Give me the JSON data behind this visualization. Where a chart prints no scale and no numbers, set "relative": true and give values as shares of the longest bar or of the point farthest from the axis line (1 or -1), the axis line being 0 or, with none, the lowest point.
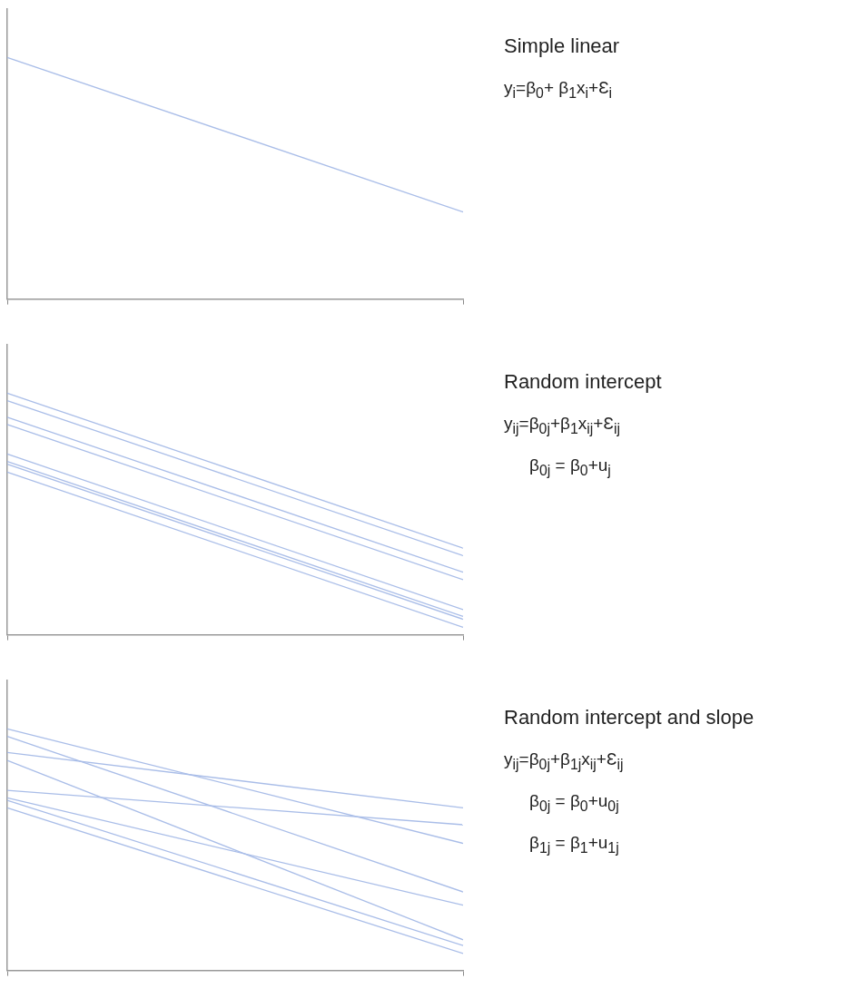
{
  "chart_data": [
    {
      "type": "line",
      "title": "Simple linear",
      "annotations": [
        "y$_{i}$=β$_{0}$+ β$_{1}$x$_{i}$+Ɛ$_{i}$"
      ],
      "categories": [
        null,
        null
      ],
      "relative": true,
      "legend": false,
      "marker": "none",
      "line_style": "solid",
      "series": [
        {
          "color": "#a9bde8",
          "values": [
            1,
            0.36
          ]
        }
      ]
    },
    {
      "type": "line",
      "title": "Random intercept",
      "annotations": [
        "y$_{ij}$=β$_{0j}$+β$_{1}$x$_{ij}$+Ɛ$_{ij}$",
        "β$_{0j}$ = β$_{0}$+u$_{j}$"
      ],
      "categories": [
        null,
        null
      ],
      "relative": true,
      "legend": false,
      "marker": "none",
      "line_style": "solid",
      "series": [
        {
          "color": "#a9bde8",
          "values": [
            1,
            0.358
          ]
        },
        {
          "color": "#a9bde8",
          "values": [
            0.969,
            0.327
          ]
        },
        {
          "color": "#a9bde8",
          "values": [
            0.9,
            0.259
          ]
        },
        {
          "color": "#a9bde8",
          "values": [
            0.87,
            0.228
          ]
        },
        {
          "color": "#a9bde8",
          "values": [
            0.748,
            0.104
          ]
        },
        {
          "color": "#a9bde8",
          "values": [
            0.717,
            0.076
          ]
        },
        {
          "color": "#a9bde8",
          "values": [
            0.706,
            0.064
          ]
        },
        {
          "color": "#a9bde8",
          "values": [
            0.673,
            0.031
          ]
        }
      ]
    },
    {
      "type": "line",
      "title": "Random intercept and slope",
      "annotations": [
        "y$_{ij}$=β$_{0j}$+β$_{1j}$x$_{ij}$+Ɛ$_{ij}$",
        "β$_{0j}$ = β$_{0}$+u$_{0j}$",
        "β$_{1j}$ = β$_{1}$+u$_{1j}$"
      ],
      "categories": [
        null,
        null
      ],
      "relative": true,
      "legend": false,
      "marker": "none",
      "line_style": "solid",
      "series": [
        {
          "color": "#a9bde8",
          "values": [
            1,
            0.526
          ]
        },
        {
          "color": "#a9bde8",
          "values": [
            0.969,
            0.325
          ]
        },
        {
          "color": "#a9bde8",
          "values": [
            0.902,
            0.673
          ]
        },
        {
          "color": "#a9bde8",
          "values": [
            0.869,
            0.127
          ]
        },
        {
          "color": "#a9bde8",
          "values": [
            0.745,
            0.603
          ]
        },
        {
          "color": "#a9bde8",
          "values": [
            0.714,
            0.27
          ]
        },
        {
          "color": "#a9bde8",
          "values": [
            0.704,
            0.103
          ]
        },
        {
          "color": "#a9bde8",
          "values": [
            0.673,
            0.07
          ]
        }
      ]
    }
  ]
}
